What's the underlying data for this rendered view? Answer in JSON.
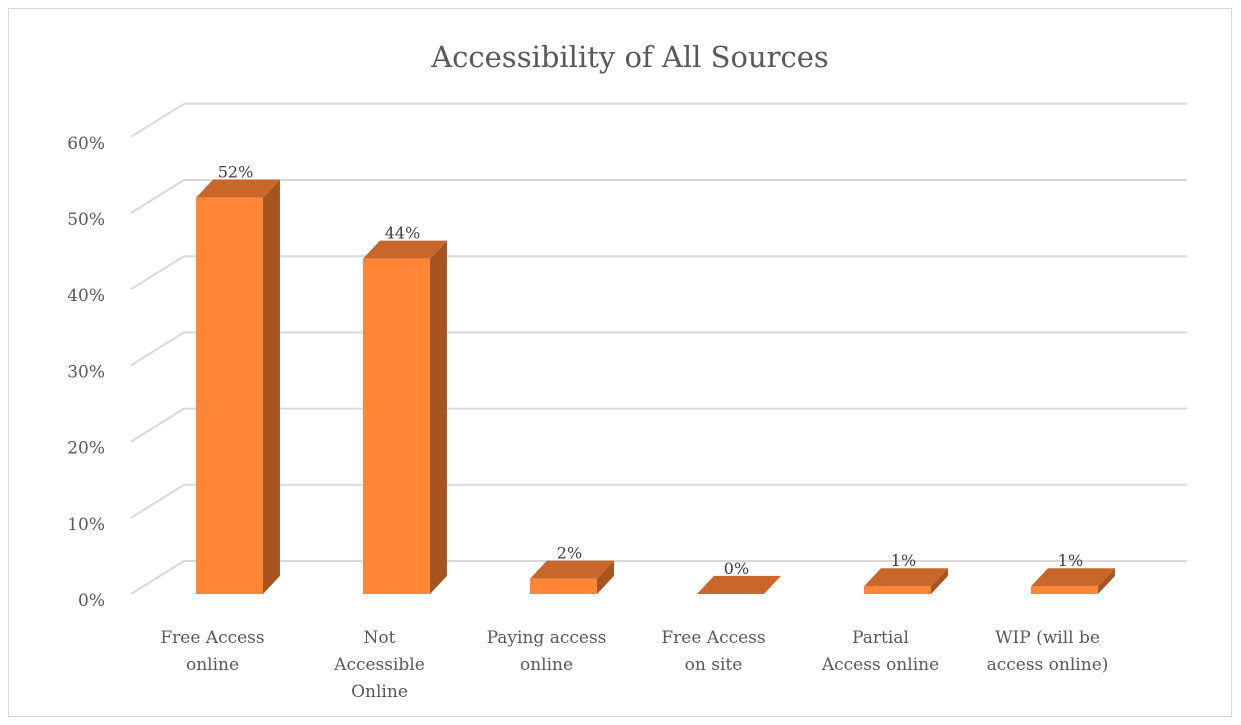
{
  "chart_data": {
    "type": "bar",
    "title": "Accessibility of All Sources",
    "categories": [
      [
        "Free Access",
        "online"
      ],
      [
        "Not",
        "Accessible",
        "Online"
      ],
      [
        "Paying access",
        "online"
      ],
      [
        "Free Access",
        "on site"
      ],
      [
        "Partial",
        "Access online"
      ],
      [
        "WIP (will be",
        "access online)"
      ]
    ],
    "values": [
      52,
      44,
      2,
      0,
      1,
      1
    ],
    "data_labels": [
      "52%",
      "44%",
      "2%",
      "0%",
      "1%",
      "1%"
    ],
    "yticks": [
      "0%",
      "10%",
      "20%",
      "30%",
      "40%",
      "50%",
      "60%"
    ],
    "ylim": [
      0,
      60
    ],
    "grid": true,
    "legend": "none",
    "style": "3d-column",
    "colors": {
      "bar_front": "#FF8636",
      "bar_side": "#A65520",
      "bar_top": "#C9662A",
      "grid": "#d9d9d9",
      "text": "#595959"
    }
  }
}
